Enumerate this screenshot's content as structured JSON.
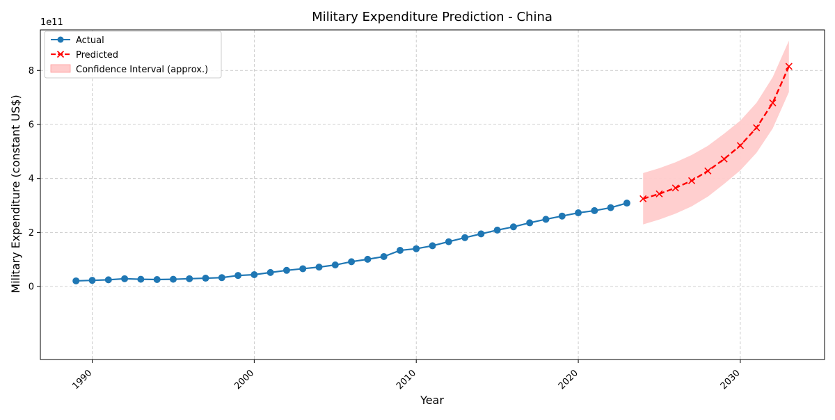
{
  "chart_data": {
    "type": "line",
    "title": "Military Expenditure Prediction - China",
    "xlabel": "Year",
    "ylabel": "Military Expenditure (constant US$)",
    "y_offset_label": "1e11",
    "xlim": [
      1986.8,
      2035.2
    ],
    "ylim": [
      -0.27,
      0.95
    ],
    "x_ticks": [
      1990,
      2000,
      2010,
      2020,
      2030
    ],
    "x_tick_labels": [
      "1990",
      "2000",
      "2010",
      "2020",
      "2030"
    ],
    "y_ticks": [
      0,
      0.2,
      0.4,
      0.6,
      0.8
    ],
    "y_tick_labels": [
      "0",
      "2",
      "4",
      "6",
      "8"
    ],
    "grid": true,
    "legend_position": "top-left",
    "legend": {
      "actual": "Actual",
      "predicted": "Predicted",
      "ci": "Confidence Interval (approx.)"
    },
    "colors": {
      "actual": "#1f77b4",
      "predicted": "#ff0000",
      "ci_fill": "#ffcccc",
      "ci_stroke": "#ff9999"
    },
    "unit_note": "y values in units of 1e11 constant US$",
    "series": [
      {
        "name": "Actual",
        "style": "solid-circle",
        "x": [
          1989,
          1990,
          1991,
          1992,
          1993,
          1994,
          1995,
          1996,
          1997,
          1998,
          1999,
          2000,
          2001,
          2002,
          2003,
          2004,
          2005,
          2006,
          2007,
          2008,
          2009,
          2010,
          2011,
          2012,
          2013,
          2014,
          2015,
          2016,
          2017,
          2018,
          2019,
          2020,
          2021,
          2022,
          2023
        ],
        "y": [
          0.021,
          0.023,
          0.025,
          0.029,
          0.027,
          0.026,
          0.027,
          0.029,
          0.031,
          0.033,
          0.041,
          0.044,
          0.052,
          0.06,
          0.066,
          0.072,
          0.08,
          0.092,
          0.101,
          0.111,
          0.134,
          0.14,
          0.151,
          0.166,
          0.181,
          0.195,
          0.209,
          0.221,
          0.236,
          0.249,
          0.261,
          0.273,
          0.281,
          0.292,
          0.309
        ]
      },
      {
        "name": "Predicted",
        "style": "dashed-x",
        "x": [
          2024,
          2025,
          2026,
          2027,
          2028,
          2029,
          2030,
          2031,
          2032,
          2033
        ],
        "y": [
          0.325,
          0.343,
          0.365,
          0.392,
          0.428,
          0.472,
          0.522,
          0.588,
          0.68,
          0.815
        ]
      }
    ],
    "confidence_interval": {
      "x": [
        2024,
        2025,
        2026,
        2027,
        2028,
        2029,
        2030,
        2031,
        2032,
        2033
      ],
      "lower": [
        0.23,
        0.248,
        0.27,
        0.297,
        0.333,
        0.38,
        0.43,
        0.495,
        0.585,
        0.72
      ],
      "upper": [
        0.42,
        0.438,
        0.46,
        0.487,
        0.521,
        0.566,
        0.614,
        0.68,
        0.775,
        0.91
      ]
    }
  }
}
